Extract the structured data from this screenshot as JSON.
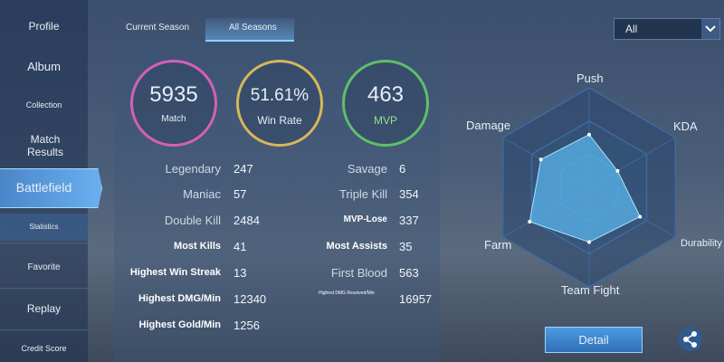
{
  "sidebar": {
    "items": [
      "Profile",
      "Album",
      "Collection",
      "Match Results",
      "Battlefield",
      "Statistics",
      "Favorite",
      "Replay",
      "Credit Score"
    ]
  },
  "tabs": [
    "Current Season",
    "All Seasons"
  ],
  "filter": "All",
  "summary": [
    {
      "value": "5935",
      "label": "Match"
    },
    {
      "value": "51.61%",
      "label": "Win Rate"
    },
    {
      "value": "463",
      "label": "MVP"
    }
  ],
  "stats_left": [
    {
      "label": "Legendary",
      "value": 247
    },
    {
      "label": "Maniac",
      "value": 57
    },
    {
      "label": "Double Kill",
      "value": 2484
    },
    {
      "label": "Most Kills",
      "value": 41
    },
    {
      "label": "Highest Win Streak",
      "value": 13
    },
    {
      "label": "Highest DMG/Min",
      "value": 12340
    },
    {
      "label": "Highest Gold/Min",
      "value": 1256
    }
  ],
  "stats_right": [
    {
      "label": "Savage",
      "value": 6
    },
    {
      "label": "Triple Kill",
      "value": 354
    },
    {
      "label": "MVP-Lose",
      "value": 337
    },
    {
      "label": "Most Assists",
      "value": 35
    },
    {
      "label": "First Blood",
      "value": 563
    },
    {
      "label": "Highest DMG Received/Min",
      "value": 16957
    }
  ],
  "radar": {
    "axes": [
      "Push",
      "KDA",
      "Durability",
      "Team Fight",
      "Farm",
      "Damage"
    ],
    "values": [
      53,
      33,
      59,
      55,
      69,
      56
    ],
    "rlim": [
      0,
      100
    ]
  },
  "detail_button": "Detail"
}
